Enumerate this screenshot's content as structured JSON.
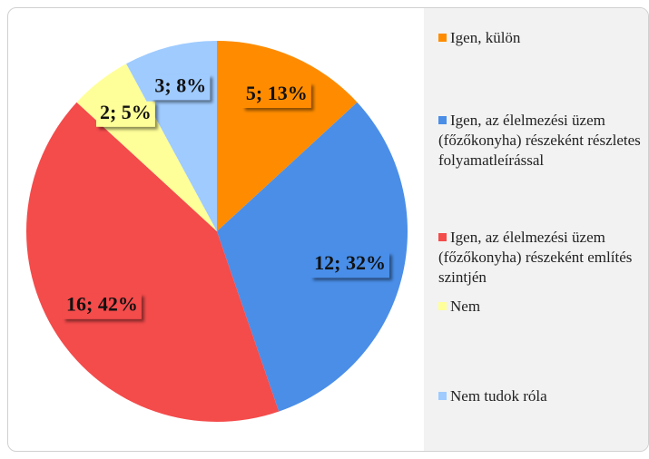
{
  "chart_data": {
    "type": "pie",
    "categories": [
      "Igen, külön",
      "Igen, az élelmezési üzem (főzőkonyha) részeként részletes folyamatleírással",
      "Igen, az élelmezési üzem (főzőkonyha) részeként említés szintjén",
      "Nem",
      "Nem tudok róla"
    ],
    "values": [
      5,
      12,
      16,
      2,
      3
    ],
    "value_labels": [
      "5; 13%",
      "12; 32%",
      "16; 42%",
      "2; 5%",
      "3; 8%"
    ],
    "colors": [
      "#ff8c00",
      "#4a8ee8",
      "#f44b4b",
      "#ffff99",
      "#9fcbff"
    ],
    "legend": "right"
  }
}
